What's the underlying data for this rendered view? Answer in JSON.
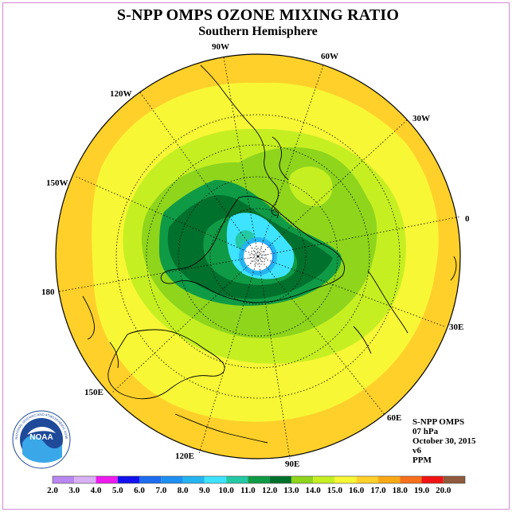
{
  "header": {
    "title": "S-NPP OMPS OZONE MIXING RATIO",
    "subtitle": "Southern Hemisphere"
  },
  "longitude_labels": {
    "lon_90w": "90W",
    "lon_60w": "60W",
    "lon_120w": "120W",
    "lon_30w": "30W",
    "lon_150w": "150W",
    "lon_0": "0",
    "lon_180": "180",
    "lon_30e": "30E",
    "lon_150e": "150E",
    "lon_60e": "60E",
    "lon_120e": "120E",
    "lon_90e": "90E"
  },
  "info": {
    "instrument": "S-NPP OMPS",
    "level": "07 hPa",
    "date": "October 30, 2015",
    "version": "v6",
    "units": "PPM"
  },
  "logo": {
    "text": "NOAA",
    "ring_text": "NATIONAL OCEANIC AND ATMOSPHERIC ADMINISTRATION · U.S. DEPARTMENT OF COMMERCE"
  },
  "colors": {
    "background": "#ffffff",
    "frame": "#d58ad5"
  },
  "legend": {
    "ticks": [
      "2.0",
      "3.0",
      "4.0",
      "5.0",
      "6.0",
      "7.0",
      "8.0",
      "9.0",
      "10.0",
      "11.0",
      "12.0",
      "13.0",
      "14.0",
      "15.0",
      "16.0",
      "17.0",
      "18.0",
      "19.0",
      "20.0"
    ],
    "colors": [
      "#b987f0",
      "#d9b0f4",
      "#ee1aee",
      "#1212ee",
      "#1e6cf0",
      "#1e90f0",
      "#25b4ef",
      "#3ee3ff",
      "#24c9a4",
      "#0f9a46",
      "#00702d",
      "#8ed51c",
      "#c6ef22",
      "#f7f736",
      "#ffd02a",
      "#f8a915",
      "#f8701b",
      "#f01313",
      "#8f5a3d"
    ]
  },
  "map_data": {
    "projection": "polar stereographic, south pole centered",
    "field": "ozone mixing ratio",
    "pressure_level": "07 hPa",
    "units": "PPM",
    "min_level": "2.0",
    "max_level": "20.0"
  }
}
